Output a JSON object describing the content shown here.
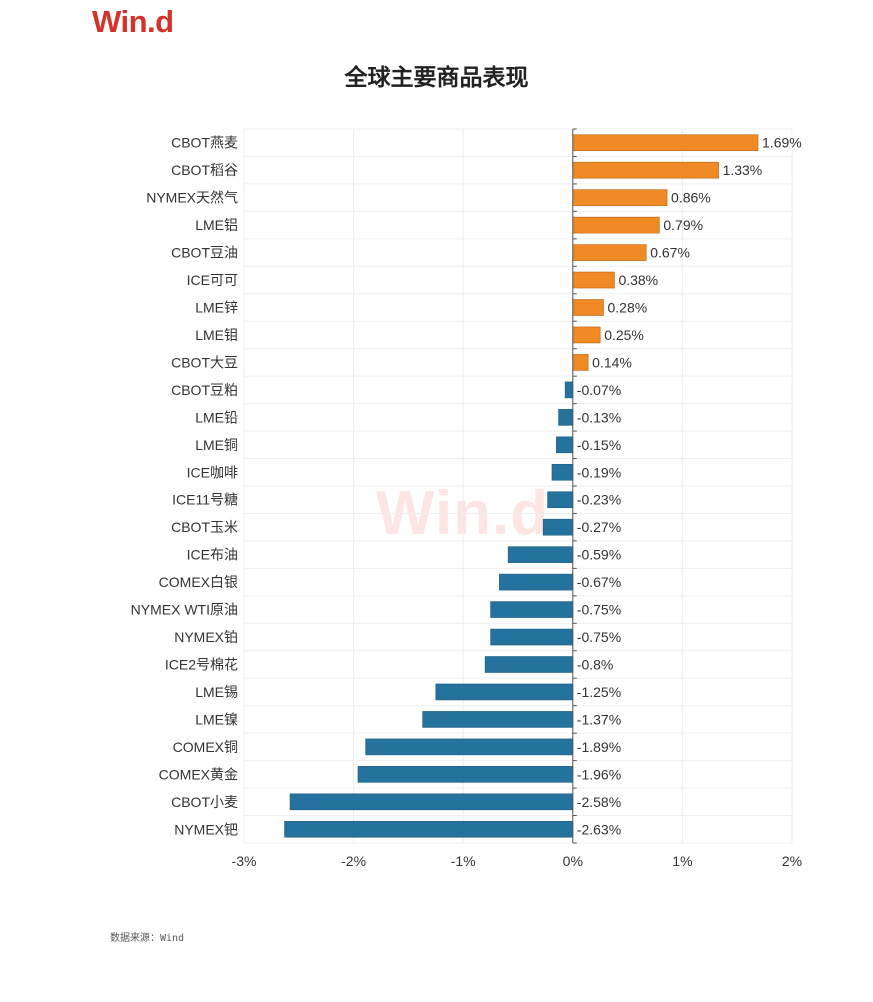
{
  "header": {
    "logo_text": "Win.d"
  },
  "watermark": "Win.d",
  "source_note": "数据来源：Wind",
  "colors": {
    "positive": "#f08a24",
    "negative": "#26729e",
    "logo": "#d6322b"
  },
  "chart_data": {
    "type": "bar",
    "orientation": "horizontal",
    "title": "全球主要商品表现",
    "xlabel": "",
    "ylabel": "",
    "xlim": [
      -3,
      2
    ],
    "xticks": [
      "-3%",
      "-2%",
      "-1%",
      "0%",
      "1%",
      "2%"
    ],
    "xtick_values": [
      -3,
      -2,
      -1,
      0,
      1,
      2
    ],
    "grid": true,
    "categories": [
      "CBOT燕麦",
      "CBOT稻谷",
      "NYMEX天然气",
      "LME铝",
      "CBOT豆油",
      "ICE可可",
      "LME锌",
      "LME钼",
      "CBOT大豆",
      "CBOT豆粕",
      "LME铅",
      "LME铜",
      "ICE咖啡",
      "ICE11号糖",
      "CBOT玉米",
      "ICE布油",
      "COMEX白银",
      "NYMEX WTI原油",
      "NYMEX铂",
      "ICE2号棉花",
      "LME锡",
      "LME镍",
      "COMEX铜",
      "COMEX黄金",
      "CBOT小麦",
      "NYMEX钯"
    ],
    "values": [
      1.69,
      1.33,
      0.86,
      0.79,
      0.67,
      0.38,
      0.28,
      0.25,
      0.14,
      -0.07,
      -0.13,
      -0.15,
      -0.19,
      -0.23,
      -0.27,
      -0.59,
      -0.67,
      -0.75,
      -0.75,
      -0.8,
      -1.25,
      -1.37,
      -1.89,
      -1.96,
      -2.58,
      -2.63
    ],
    "value_labels": [
      "1.69%",
      "1.33%",
      "0.86%",
      "0.79%",
      "0.67%",
      "0.38%",
      "0.28%",
      "0.25%",
      "0.14%",
      "-0.07%",
      "-0.13%",
      "-0.15%",
      "-0.19%",
      "-0.23%",
      "-0.27%",
      "-0.59%",
      "-0.67%",
      "-0.75%",
      "-0.75%",
      "-0.8%",
      "-1.25%",
      "-1.37%",
      "-1.89%",
      "-1.96%",
      "-2.58%",
      "-2.63%"
    ]
  }
}
